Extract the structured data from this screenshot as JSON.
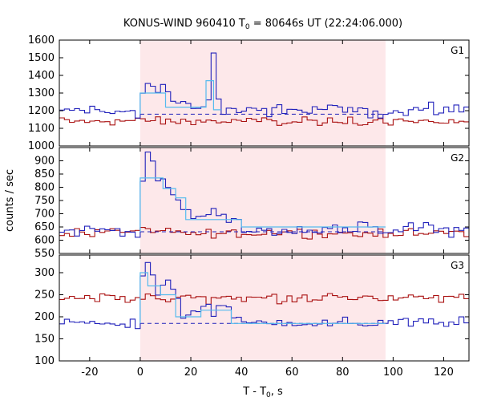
{
  "chart_data": {
    "type": "line",
    "title_main": "KONUS-WIND 960410 T",
    "title_sub": "0",
    "title_rest": " = 80646s UT (22:24:06.000)",
    "xlabel_main": "T - T",
    "xlabel_sub": "0",
    "xlabel_rest": ", s",
    "ylabel": "counts / sec",
    "xlim": [
      -32,
      130
    ],
    "xticks": [
      -20,
      0,
      20,
      40,
      60,
      80,
      100,
      120
    ],
    "x_tick_labels": [
      "-20",
      "0",
      "20",
      "40",
      "60",
      "80",
      "100",
      "120"
    ],
    "highlight_region": [
      0,
      97
    ],
    "colors": {
      "signal": "#2222bb",
      "background": "#aa1111",
      "fit": "#55bbee",
      "highlight": "#fde8ea"
    },
    "panels": [
      {
        "label": "G1",
        "ylim": [
          1000,
          1600
        ],
        "yticks": [
          1000,
          1100,
          1200,
          1300,
          1400,
          1500,
          1600
        ],
        "y_tick_labels": [
          "1000",
          "1100",
          "1200",
          "1300",
          "1400",
          "1500",
          "1600"
        ],
        "signal_base": 1200,
        "signal_noise": 26,
        "background_base": 1140,
        "background_noise": 16,
        "bg_level": 1180,
        "pulses": [
          {
            "start": 0,
            "end": 2,
            "value": 1300
          },
          {
            "start": 2,
            "end": 4,
            "value": 1360
          },
          {
            "start": 4,
            "end": 6,
            "value": 1340
          },
          {
            "start": 6,
            "end": 8,
            "value": 1310
          },
          {
            "start": 8,
            "end": 10,
            "value": 1345
          },
          {
            "start": 10,
            "end": 12,
            "value": 1300
          },
          {
            "start": 12,
            "end": 14,
            "value": 1255
          },
          {
            "start": 14,
            "end": 16,
            "value": 1245
          },
          {
            "start": 16,
            "end": 18,
            "value": 1250
          },
          {
            "start": 18,
            "end": 20,
            "value": 1240
          },
          {
            "start": 20,
            "end": 26,
            "value": 1220
          },
          {
            "start": 26,
            "end": 28,
            "value": 1260
          },
          {
            "start": 28,
            "end": 30,
            "value": 1530
          },
          {
            "start": 30,
            "end": 32,
            "value": 1260
          }
        ],
        "fit_steps": [
          {
            "start": 0,
            "end": 4,
            "value": 1300
          },
          {
            "start": 4,
            "end": 10,
            "value": 1300
          },
          {
            "start": 10,
            "end": 26,
            "value": 1220
          },
          {
            "start": 26,
            "end": 29,
            "value": 1370
          },
          {
            "start": 29,
            "end": 32,
            "value": 1205
          }
        ]
      },
      {
        "label": "G2",
        "ylim": [
          550,
          950
        ],
        "yticks": [
          550,
          600,
          650,
          700,
          750,
          800,
          850,
          900
        ],
        "y_tick_labels": [
          "550",
          "600",
          "650",
          "700",
          "750",
          "800",
          "850",
          "900"
        ],
        "signal_base": 640,
        "signal_noise": 18,
        "background_base": 628,
        "background_noise": 12,
        "bg_level": 632,
        "pulses": [
          {
            "start": 0,
            "end": 2,
            "value": 830
          },
          {
            "start": 2,
            "end": 4,
            "value": 935
          },
          {
            "start": 4,
            "end": 6,
            "value": 895
          },
          {
            "start": 6,
            "end": 8,
            "value": 820
          },
          {
            "start": 8,
            "end": 10,
            "value": 830
          },
          {
            "start": 10,
            "end": 12,
            "value": 800
          },
          {
            "start": 12,
            "end": 14,
            "value": 770
          },
          {
            "start": 14,
            "end": 16,
            "value": 750
          },
          {
            "start": 16,
            "end": 20,
            "value": 720
          },
          {
            "start": 20,
            "end": 24,
            "value": 680
          },
          {
            "start": 24,
            "end": 28,
            "value": 690
          },
          {
            "start": 28,
            "end": 30,
            "value": 720
          },
          {
            "start": 30,
            "end": 34,
            "value": 690
          },
          {
            "start": 34,
            "end": 40,
            "value": 670
          }
        ],
        "fit_steps": [
          {
            "start": 0,
            "end": 9,
            "value": 835
          },
          {
            "start": 9,
            "end": 14,
            "value": 795
          },
          {
            "start": 14,
            "end": 18,
            "value": 760
          },
          {
            "start": 18,
            "end": 26,
            "value": 678
          },
          {
            "start": 26,
            "end": 40,
            "value": 678
          },
          {
            "start": 40,
            "end": 97,
            "value": 650
          }
        ]
      },
      {
        "label": "G3",
        "ylim": [
          100,
          340
        ],
        "yticks": [
          100,
          150,
          200,
          250,
          300
        ],
        "y_tick_labels": [
          "100",
          "150",
          "200",
          "250",
          "300"
        ],
        "signal_base": 186,
        "signal_noise": 8,
        "background_base": 243,
        "background_noise": 8,
        "bg_level": 185,
        "pulses": [
          {
            "start": 0,
            "end": 2,
            "value": 295
          },
          {
            "start": 2,
            "end": 4,
            "value": 320
          },
          {
            "start": 4,
            "end": 6,
            "value": 295
          },
          {
            "start": 6,
            "end": 8,
            "value": 250
          },
          {
            "start": 8,
            "end": 10,
            "value": 270
          },
          {
            "start": 10,
            "end": 12,
            "value": 280
          },
          {
            "start": 12,
            "end": 14,
            "value": 260
          },
          {
            "start": 14,
            "end": 16,
            "value": 240
          },
          {
            "start": 16,
            "end": 20,
            "value": 200
          },
          {
            "start": 20,
            "end": 24,
            "value": 215
          },
          {
            "start": 24,
            "end": 28,
            "value": 225
          },
          {
            "start": 28,
            "end": 30,
            "value": 205
          },
          {
            "start": 30,
            "end": 36,
            "value": 225
          },
          {
            "start": 36,
            "end": 40,
            "value": 200
          }
        ],
        "fit_steps": [
          {
            "start": 0,
            "end": 3,
            "value": 300
          },
          {
            "start": 3,
            "end": 8,
            "value": 270
          },
          {
            "start": 8,
            "end": 14,
            "value": 250
          },
          {
            "start": 14,
            "end": 24,
            "value": 200
          },
          {
            "start": 24,
            "end": 36,
            "value": 215
          },
          {
            "start": 36,
            "end": 97,
            "value": 185
          }
        ]
      }
    ]
  }
}
